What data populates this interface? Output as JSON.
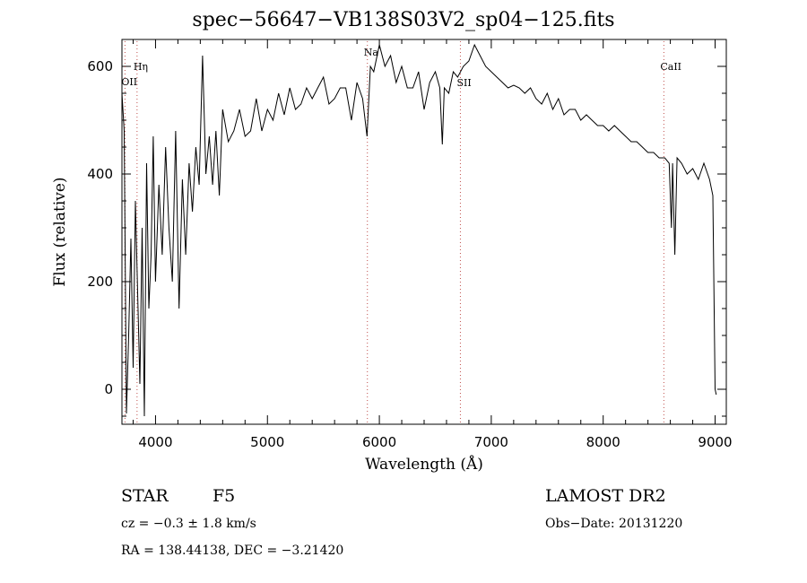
{
  "chart_data": {
    "type": "line",
    "title": "spec−56647−VB138S03V2_sp04−125.fits",
    "xlabel": "Wavelength (Å)",
    "ylabel": "Flux (relative)",
    "xlim": [
      3700,
      9100
    ],
    "ylim": [
      -65,
      650
    ],
    "xticks": [
      4000,
      5000,
      6000,
      7000,
      8000,
      9000
    ],
    "yticks": [
      0,
      200,
      400,
      600
    ],
    "series": [
      {
        "x": [
          3700,
          3720,
          3740,
          3760,
          3780,
          3800,
          3820,
          3840,
          3860,
          3880,
          3900,
          3920,
          3940,
          3960,
          3980,
          4000,
          4030,
          4060,
          4090,
          4120,
          4150,
          4180,
          4210,
          4240,
          4270,
          4300,
          4330,
          4360,
          4390,
          4420,
          4450,
          4480,
          4510,
          4540,
          4570,
          4600,
          4650,
          4700,
          4750,
          4800,
          4850,
          4900,
          4950,
          5000,
          5050,
          5100,
          5150,
          5200,
          5250,
          5300,
          5350,
          5400,
          5450,
          5500,
          5550,
          5600,
          5650,
          5700,
          5750,
          5800,
          5850,
          5890,
          5920,
          5950,
          6000,
          6050,
          6100,
          6150,
          6200,
          6250,
          6300,
          6350,
          6400,
          6450,
          6500,
          6540,
          6563,
          6580,
          6620,
          6660,
          6700,
          6750,
          6800,
          6850,
          6900,
          6950,
          7000,
          7050,
          7100,
          7150,
          7200,
          7250,
          7300,
          7350,
          7400,
          7450,
          7500,
          7550,
          7600,
          7650,
          7700,
          7750,
          7800,
          7850,
          7900,
          7950,
          8000,
          8050,
          8100,
          8150,
          8200,
          8250,
          8300,
          8350,
          8400,
          8450,
          8500,
          8550,
          8590,
          8610,
          8620,
          8640,
          8660,
          8700,
          8750,
          8800,
          8850,
          8900,
          8950,
          8980,
          9000,
          9010
        ],
        "y": [
          550,
          480,
          -45,
          100,
          280,
          40,
          350,
          180,
          10,
          300,
          -50,
          420,
          150,
          250,
          470,
          200,
          380,
          250,
          450,
          300,
          200,
          480,
          150,
          390,
          250,
          420,
          330,
          450,
          380,
          620,
          400,
          470,
          380,
          480,
          360,
          520,
          460,
          480,
          520,
          470,
          480,
          540,
          480,
          520,
          500,
          550,
          510,
          560,
          520,
          530,
          560,
          540,
          560,
          580,
          530,
          540,
          560,
          560,
          500,
          570,
          540,
          470,
          600,
          590,
          640,
          600,
          620,
          570,
          600,
          560,
          560,
          590,
          520,
          570,
          590,
          560,
          455,
          560,
          550,
          590,
          580,
          600,
          610,
          640,
          620,
          600,
          590,
          580,
          570,
          560,
          565,
          560,
          550,
          560,
          540,
          530,
          550,
          520,
          540,
          510,
          520,
          520,
          500,
          510,
          500,
          490,
          490,
          480,
          490,
          480,
          470,
          460,
          460,
          450,
          440,
          440,
          430,
          430,
          420,
          300,
          420,
          250,
          430,
          420,
          400,
          410,
          390,
          420,
          390,
          360,
          0,
          -10
        ]
      }
    ],
    "lines": [
      {
        "label": "OII",
        "x": 3727
      },
      {
        "label": "Hη",
        "x": 3835
      },
      {
        "label": "Na",
        "x": 5893
      },
      {
        "label": "SII",
        "x": 6724
      },
      {
        "label": "CaII",
        "x": 8542
      }
    ]
  },
  "info": {
    "class_label": "STAR",
    "subclass": "F5",
    "survey": "LAMOST DR2",
    "cz": "cz = −0.3 ± 1.8 km/s",
    "obs_date": "Obs−Date: 20131220",
    "coords": "RA = 138.44138, DEC =  −3.21420"
  }
}
